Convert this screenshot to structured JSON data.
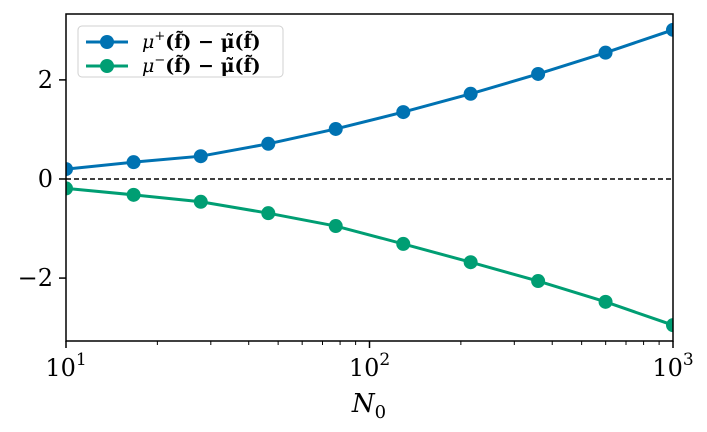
{
  "chart_data": {
    "type": "line",
    "title": "",
    "xlabel": "N_0",
    "xlabel_main": "N",
    "xlabel_sub": "0",
    "ylabel": "",
    "xscale": "log",
    "xlim": [
      10,
      1000
    ],
    "ylim": [
      -3.27,
      3.33
    ],
    "x": [
      10,
      16.7,
      27.8,
      46.4,
      77.4,
      129.2,
      215.4,
      359.4,
      599.5,
      1000
    ],
    "series": [
      {
        "name": "μ⁺(f̃) − μ̃(f̃)",
        "color": "#0072B2",
        "marker": "circle",
        "values": [
          0.2,
          0.34,
          0.46,
          0.71,
          1.01,
          1.35,
          1.72,
          2.12,
          2.55,
          3.01
        ]
      },
      {
        "name": "μ⁻(f̃) − μ̃(f̃)",
        "color": "#009E73",
        "marker": "circle",
        "values": [
          -0.19,
          -0.32,
          -0.46,
          -0.69,
          -0.95,
          -1.31,
          -1.68,
          -2.06,
          -2.48,
          -2.95
        ]
      }
    ],
    "reference_line": {
      "y": 0,
      "style": "dashed",
      "color": "#000000"
    },
    "x_ticks": [
      {
        "value": 10,
        "base": "10",
        "exp": "1"
      },
      {
        "value": 100,
        "base": "10",
        "exp": "2"
      },
      {
        "value": 1000,
        "base": "10",
        "exp": "3"
      }
    ],
    "y_ticks": [
      {
        "value": 2,
        "label": "2"
      },
      {
        "value": 0,
        "label": "0"
      },
      {
        "value": -2,
        "label": "−2"
      }
    ],
    "legend": {
      "position": "upper left",
      "entries": [
        {
          "mu_sup": "+",
          "text_left": "μ",
          "text_mid": "(f̃) − ",
          "text_right": "μ̃(f̃)"
        },
        {
          "mu_sup": "−",
          "text_left": "μ",
          "text_mid": "(f̃) − ",
          "text_right": "μ̃(f̃)"
        }
      ]
    },
    "grid": false
  }
}
